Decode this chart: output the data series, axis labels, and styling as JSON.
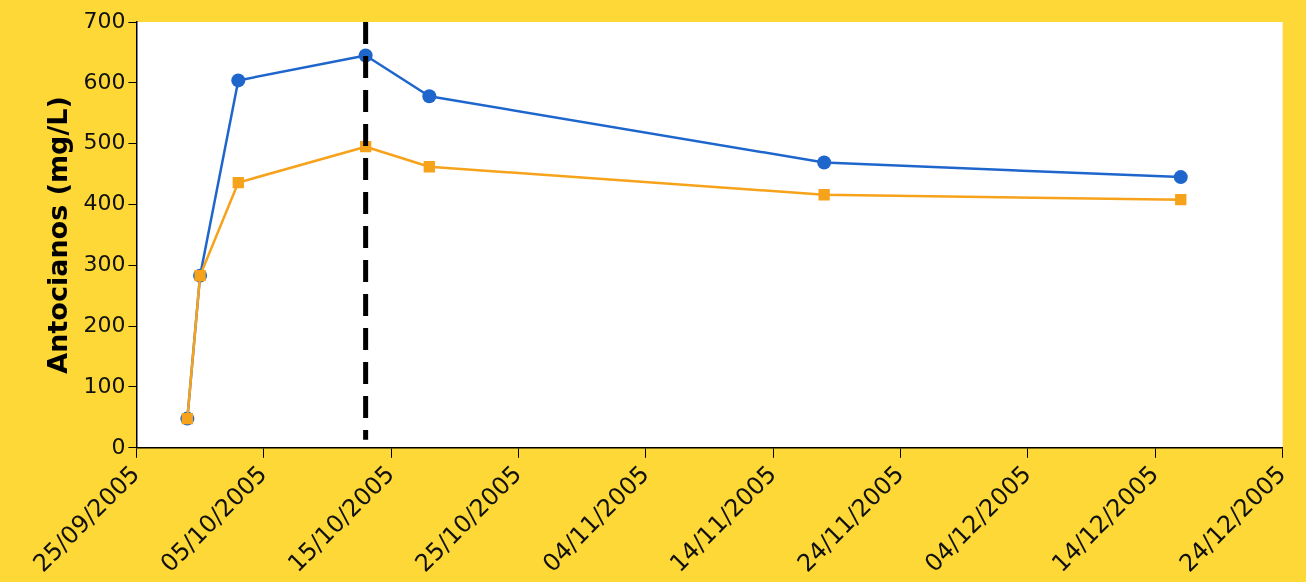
{
  "chart_data": {
    "type": "line",
    "ylabel": "Antocianos (mg/L)",
    "x": [
      "2005-09-29",
      "2005-09-30",
      "2005-10-03",
      "2005-10-13",
      "2005-10-18",
      "2005-11-18",
      "2005-12-16"
    ],
    "series": [
      {
        "color": "#1f66cc",
        "marker": "circle",
        "values": [
          48,
          283,
          604,
          645,
          578,
          469,
          445
        ]
      },
      {
        "color": "#f7a21b",
        "marker": "square",
        "values": [
          48,
          283,
          436,
          495,
          462,
          416,
          408
        ]
      }
    ],
    "xlim": [
      "2005-09-25",
      "2005-12-24"
    ],
    "xticks": [
      {
        "value": "2005-09-25",
        "label": "25/09/2005"
      },
      {
        "value": "2005-10-05",
        "label": "05/10/2005"
      },
      {
        "value": "2005-10-15",
        "label": "15/10/2005"
      },
      {
        "value": "2005-10-25",
        "label": "25/10/2005"
      },
      {
        "value": "2005-11-04",
        "label": "04/11/2005"
      },
      {
        "value": "2005-11-14",
        "label": "14/11/2005"
      },
      {
        "value": "2005-11-24",
        "label": "24/11/2005"
      },
      {
        "value": "2005-12-04",
        "label": "04/12/2005"
      },
      {
        "value": "2005-12-14",
        "label": "14/12/2005"
      },
      {
        "value": "2005-12-24",
        "label": "24/12/2005"
      }
    ],
    "ylim": [
      0,
      700
    ],
    "yticks": [
      0,
      100,
      200,
      300,
      400,
      500,
      600,
      700
    ],
    "ref_lines": [
      {
        "axis": "x",
        "value": "2005-10-13",
        "color": "#000000",
        "line_style": "dashed"
      }
    ],
    "grid": false,
    "legend": false
  }
}
